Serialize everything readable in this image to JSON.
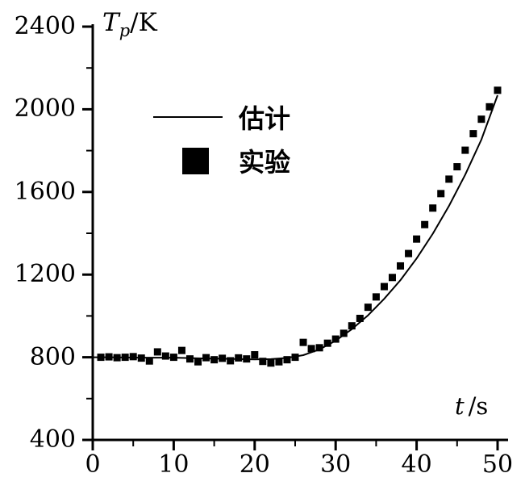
{
  "colors": {
    "ink": "#000000",
    "background": "#ffffff"
  },
  "chart_data": {
    "type": "line+scatter",
    "title": "",
    "xlabel": "t /s",
    "ylabel": "Tp/K",
    "xlabel_parts": {
      "symbol": "t",
      "unit": "/s"
    },
    "ylabel_parts": {
      "symbol": "T",
      "subscript": "p",
      "unit": "/K"
    },
    "xlim": [
      0,
      50
    ],
    "ylim": [
      400,
      2400
    ],
    "x_ticks": [
      0,
      10,
      20,
      30,
      40,
      50
    ],
    "y_ticks": [
      400,
      800,
      1200,
      1600,
      2000,
      2400
    ],
    "x_minor_step": 5,
    "y_minor_step": 200,
    "grid": false,
    "legend_position": "upper-left-inside",
    "legend": [
      {
        "label": "估计",
        "marker": "line"
      },
      {
        "label": "实验",
        "marker": "filled-square"
      }
    ],
    "series": [
      {
        "name": "估计",
        "type": "line",
        "points": [
          [
            0,
            800
          ],
          [
            2,
            800
          ],
          [
            4,
            799
          ],
          [
            6,
            798
          ],
          [
            8,
            798
          ],
          [
            10,
            798
          ],
          [
            12,
            796
          ],
          [
            14,
            794
          ],
          [
            16,
            793
          ],
          [
            18,
            791
          ],
          [
            20,
            790
          ],
          [
            22,
            791
          ],
          [
            24,
            797
          ],
          [
            26,
            810
          ],
          [
            28,
            838
          ],
          [
            30,
            880
          ],
          [
            32,
            936
          ],
          [
            34,
            1003
          ],
          [
            36,
            1083
          ],
          [
            38,
            1173
          ],
          [
            40,
            1278
          ],
          [
            42,
            1398
          ],
          [
            44,
            1533
          ],
          [
            46,
            1683
          ],
          [
            48,
            1853
          ],
          [
            50,
            2068
          ]
        ]
      },
      {
        "name": "实验",
        "type": "scatter",
        "points": [
          [
            1,
            800
          ],
          [
            2,
            802
          ],
          [
            3,
            798
          ],
          [
            4,
            800
          ],
          [
            5,
            803
          ],
          [
            6,
            796
          ],
          [
            7,
            782
          ],
          [
            8,
            826
          ],
          [
            9,
            806
          ],
          [
            10,
            800
          ],
          [
            11,
            833
          ],
          [
            12,
            792
          ],
          [
            13,
            778
          ],
          [
            14,
            798
          ],
          [
            15,
            788
          ],
          [
            16,
            795
          ],
          [
            17,
            783
          ],
          [
            18,
            797
          ],
          [
            19,
            792
          ],
          [
            20,
            812
          ],
          [
            21,
            780
          ],
          [
            22,
            772
          ],
          [
            23,
            778
          ],
          [
            24,
            788
          ],
          [
            25,
            800
          ],
          [
            26,
            872
          ],
          [
            27,
            842
          ],
          [
            28,
            846
          ],
          [
            29,
            868
          ],
          [
            30,
            888
          ],
          [
            31,
            916
          ],
          [
            32,
            952
          ],
          [
            33,
            988
          ],
          [
            34,
            1042
          ],
          [
            35,
            1092
          ],
          [
            36,
            1142
          ],
          [
            37,
            1186
          ],
          [
            38,
            1242
          ],
          [
            39,
            1302
          ],
          [
            40,
            1372
          ],
          [
            41,
            1442
          ],
          [
            42,
            1522
          ],
          [
            43,
            1592
          ],
          [
            44,
            1662
          ],
          [
            45,
            1722
          ],
          [
            46,
            1802
          ],
          [
            47,
            1882
          ],
          [
            48,
            1952
          ],
          [
            49,
            2012
          ],
          [
            50,
            2092
          ]
        ]
      }
    ]
  }
}
